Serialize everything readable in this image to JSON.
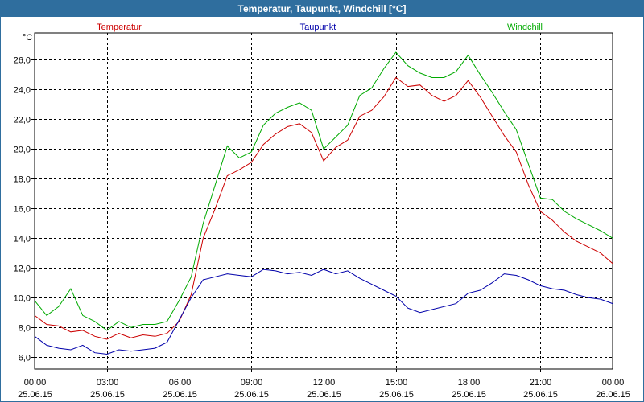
{
  "window": {
    "title": "Temperatur, Taupunkt, Windchill [°C]"
  },
  "chart_data": {
    "type": "line",
    "title": "Temperatur, Taupunkt, Windchill [°C]",
    "ylabel": "°C",
    "ylim": [
      5.2,
      27.8
    ],
    "xlim": [
      0,
      24
    ],
    "grid": true,
    "yticks": [
      6,
      8,
      10,
      12,
      14,
      16,
      18,
      20,
      22,
      24,
      26
    ],
    "ytick_labels": [
      "6,0",
      "8,0",
      "10,0",
      "12,0",
      "14,0",
      "16,0",
      "18,0",
      "20,0",
      "22,0",
      "24,0",
      "26,0"
    ],
    "xticks": [
      0,
      3,
      6,
      9,
      12,
      15,
      18,
      21,
      24
    ],
    "xtick_labels": [
      {
        "time": "00:00",
        "date": "25.06.15"
      },
      {
        "time": "03:00",
        "date": "25.06.15"
      },
      {
        "time": "06:00",
        "date": "25.06.15"
      },
      {
        "time": "09:00",
        "date": "25.06.15"
      },
      {
        "time": "12:00",
        "date": "25.06.15"
      },
      {
        "time": "15:00",
        "date": "25.06.15"
      },
      {
        "time": "18:00",
        "date": "25.06.15"
      },
      {
        "time": "21:00",
        "date": "25.06.15"
      },
      {
        "time": "00:00",
        "date": "26.06.15"
      }
    ],
    "legend_position": "top",
    "series": [
      {
        "name": "Temperatur",
        "color": "#cc0000",
        "x": [
          0,
          0.5,
          1,
          1.5,
          2,
          2.5,
          3,
          3.5,
          4,
          4.5,
          5,
          5.5,
          6,
          6.5,
          7,
          7.5,
          8,
          8.5,
          9,
          9.5,
          10,
          10.5,
          11,
          11.5,
          12,
          12.5,
          13,
          13.5,
          14,
          14.5,
          15,
          15.5,
          16,
          16.5,
          17,
          17.5,
          18,
          18.5,
          19,
          19.5,
          20,
          20.5,
          21,
          21.5,
          22,
          22.5,
          23,
          23.5,
          24
        ],
        "values": [
          8.8,
          8.2,
          8.1,
          7.7,
          7.8,
          7.4,
          7.2,
          7.6,
          7.3,
          7.5,
          7.4,
          7.6,
          8.4,
          10.2,
          14.0,
          16.0,
          18.2,
          18.6,
          19.1,
          20.3,
          21.0,
          21.5,
          21.7,
          21.1,
          19.2,
          20.1,
          20.6,
          22.2,
          22.6,
          23.5,
          24.8,
          24.2,
          24.3,
          23.6,
          23.2,
          23.6,
          24.6,
          23.5,
          22.2,
          20.9,
          19.8,
          17.6,
          15.8,
          15.2,
          14.4,
          13.8,
          13.4,
          13.0,
          12.3
        ]
      },
      {
        "name": "Taupunkt",
        "color": "#0000aa",
        "x": [
          0,
          0.5,
          1,
          1.5,
          2,
          2.5,
          3,
          3.5,
          4,
          4.5,
          5,
          5.5,
          6,
          6.5,
          7,
          7.5,
          8,
          8.5,
          9,
          9.5,
          10,
          10.5,
          11,
          11.5,
          12,
          12.5,
          13,
          13.5,
          14,
          14.5,
          15,
          15.5,
          16,
          16.5,
          17,
          17.5,
          18,
          18.5,
          19,
          19.5,
          20,
          20.5,
          21,
          21.5,
          22,
          22.5,
          23,
          23.5,
          24
        ],
        "values": [
          7.4,
          6.8,
          6.6,
          6.5,
          6.8,
          6.3,
          6.2,
          6.5,
          6.4,
          6.5,
          6.6,
          7.0,
          8.5,
          10.0,
          11.2,
          11.4,
          11.6,
          11.5,
          11.4,
          11.9,
          11.8,
          11.6,
          11.7,
          11.5,
          11.9,
          11.6,
          11.8,
          11.3,
          10.9,
          10.5,
          10.1,
          9.3,
          9.0,
          9.2,
          9.4,
          9.6,
          10.3,
          10.5,
          11.0,
          11.6,
          11.5,
          11.2,
          10.8,
          10.6,
          10.5,
          10.2,
          10.0,
          9.9,
          9.6
        ]
      },
      {
        "name": "Windchill",
        "color": "#00aa00",
        "x": [
          0,
          0.5,
          1,
          1.5,
          2,
          2.5,
          3,
          3.5,
          4,
          4.5,
          5,
          5.5,
          6,
          6.5,
          7,
          7.5,
          8,
          8.5,
          9,
          9.5,
          10,
          10.5,
          11,
          11.5,
          12,
          12.5,
          13,
          13.5,
          14,
          14.5,
          15,
          15.5,
          16,
          16.5,
          17,
          17.5,
          18,
          18.5,
          19,
          19.5,
          20,
          20.5,
          21,
          21.5,
          22,
          22.5,
          23,
          23.5,
          24
        ],
        "values": [
          9.8,
          8.8,
          9.4,
          10.6,
          8.8,
          8.4,
          7.8,
          8.4,
          8.0,
          8.2,
          8.2,
          8.4,
          9.8,
          11.4,
          15.0,
          17.6,
          20.2,
          19.4,
          19.8,
          21.6,
          22.4,
          22.8,
          23.1,
          22.6,
          20.0,
          20.8,
          21.6,
          23.6,
          24.1,
          25.4,
          26.5,
          25.6,
          25.1,
          24.8,
          24.8,
          25.2,
          26.3,
          25.0,
          23.8,
          22.5,
          21.3,
          19.0,
          16.7,
          16.6,
          15.8,
          15.3,
          14.9,
          14.5,
          14.0
        ]
      }
    ]
  }
}
